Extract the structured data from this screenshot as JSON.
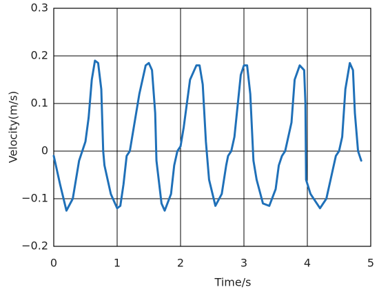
{
  "chart_data": {
    "type": "line",
    "xlabel": "Time/s",
    "ylabel": "Velocity(m/s)",
    "xlim": [
      0,
      5
    ],
    "ylim": [
      -0.2,
      0.3
    ],
    "xticks": [
      0,
      1,
      2,
      3,
      4,
      5
    ],
    "yticks": [
      {
        "value": -0.2,
        "label": "−0.2"
      },
      {
        "value": -0.1,
        "label": "−0.1"
      },
      0,
      0.1,
      0.2,
      0.3
    ],
    "grid": true,
    "x": [
      0,
      0.1,
      0.2,
      0.3,
      0.4,
      0.45,
      0.5,
      0.55,
      0.6,
      0.65,
      0.7,
      0.75,
      0.78,
      0.8,
      0.9,
      1.0,
      1.05,
      1.1,
      1.15,
      1.2,
      1.25,
      1.35,
      1.45,
      1.5,
      1.55,
      1.6,
      1.62,
      1.7,
      1.75,
      1.85,
      1.9,
      1.95,
      2.0,
      2.05,
      2.15,
      2.25,
      2.3,
      2.35,
      2.4,
      2.45,
      2.55,
      2.65,
      2.72,
      2.75,
      2.8,
      2.85,
      2.95,
      3.0,
      3.05,
      3.1,
      3.15,
      3.2,
      3.3,
      3.4,
      3.5,
      3.55,
      3.6,
      3.65,
      3.75,
      3.8,
      3.88,
      3.95,
      3.97,
      3.98,
      4.05,
      4.2,
      4.3,
      4.4,
      4.45,
      4.5,
      4.55,
      4.6,
      4.67,
      4.72,
      4.75,
      4.8,
      4.85
    ],
    "series": [
      {
        "color": "#1f70b8",
        "values": [
          -0.01,
          -0.07,
          -0.125,
          -0.1,
          -0.02,
          0.0,
          0.02,
          0.07,
          0.15,
          0.19,
          0.185,
          0.13,
          0.0,
          -0.03,
          -0.09,
          -0.12,
          -0.115,
          -0.07,
          -0.01,
          0.0,
          0.04,
          0.12,
          0.18,
          0.185,
          0.17,
          0.08,
          -0.02,
          -0.11,
          -0.125,
          -0.09,
          -0.03,
          0.0,
          0.01,
          0.05,
          0.15,
          0.18,
          0.18,
          0.14,
          0.02,
          -0.06,
          -0.115,
          -0.09,
          -0.03,
          -0.01,
          0.0,
          0.03,
          0.16,
          0.18,
          0.18,
          0.12,
          -0.02,
          -0.06,
          -0.11,
          -0.115,
          -0.08,
          -0.03,
          -0.01,
          0.0,
          0.06,
          0.15,
          0.18,
          0.17,
          0.1,
          -0.06,
          -0.09,
          -0.12,
          -0.1,
          -0.04,
          -0.01,
          0.0,
          0.03,
          0.13,
          0.185,
          0.17,
          0.08,
          0.0,
          -0.02
        ]
      }
    ]
  }
}
